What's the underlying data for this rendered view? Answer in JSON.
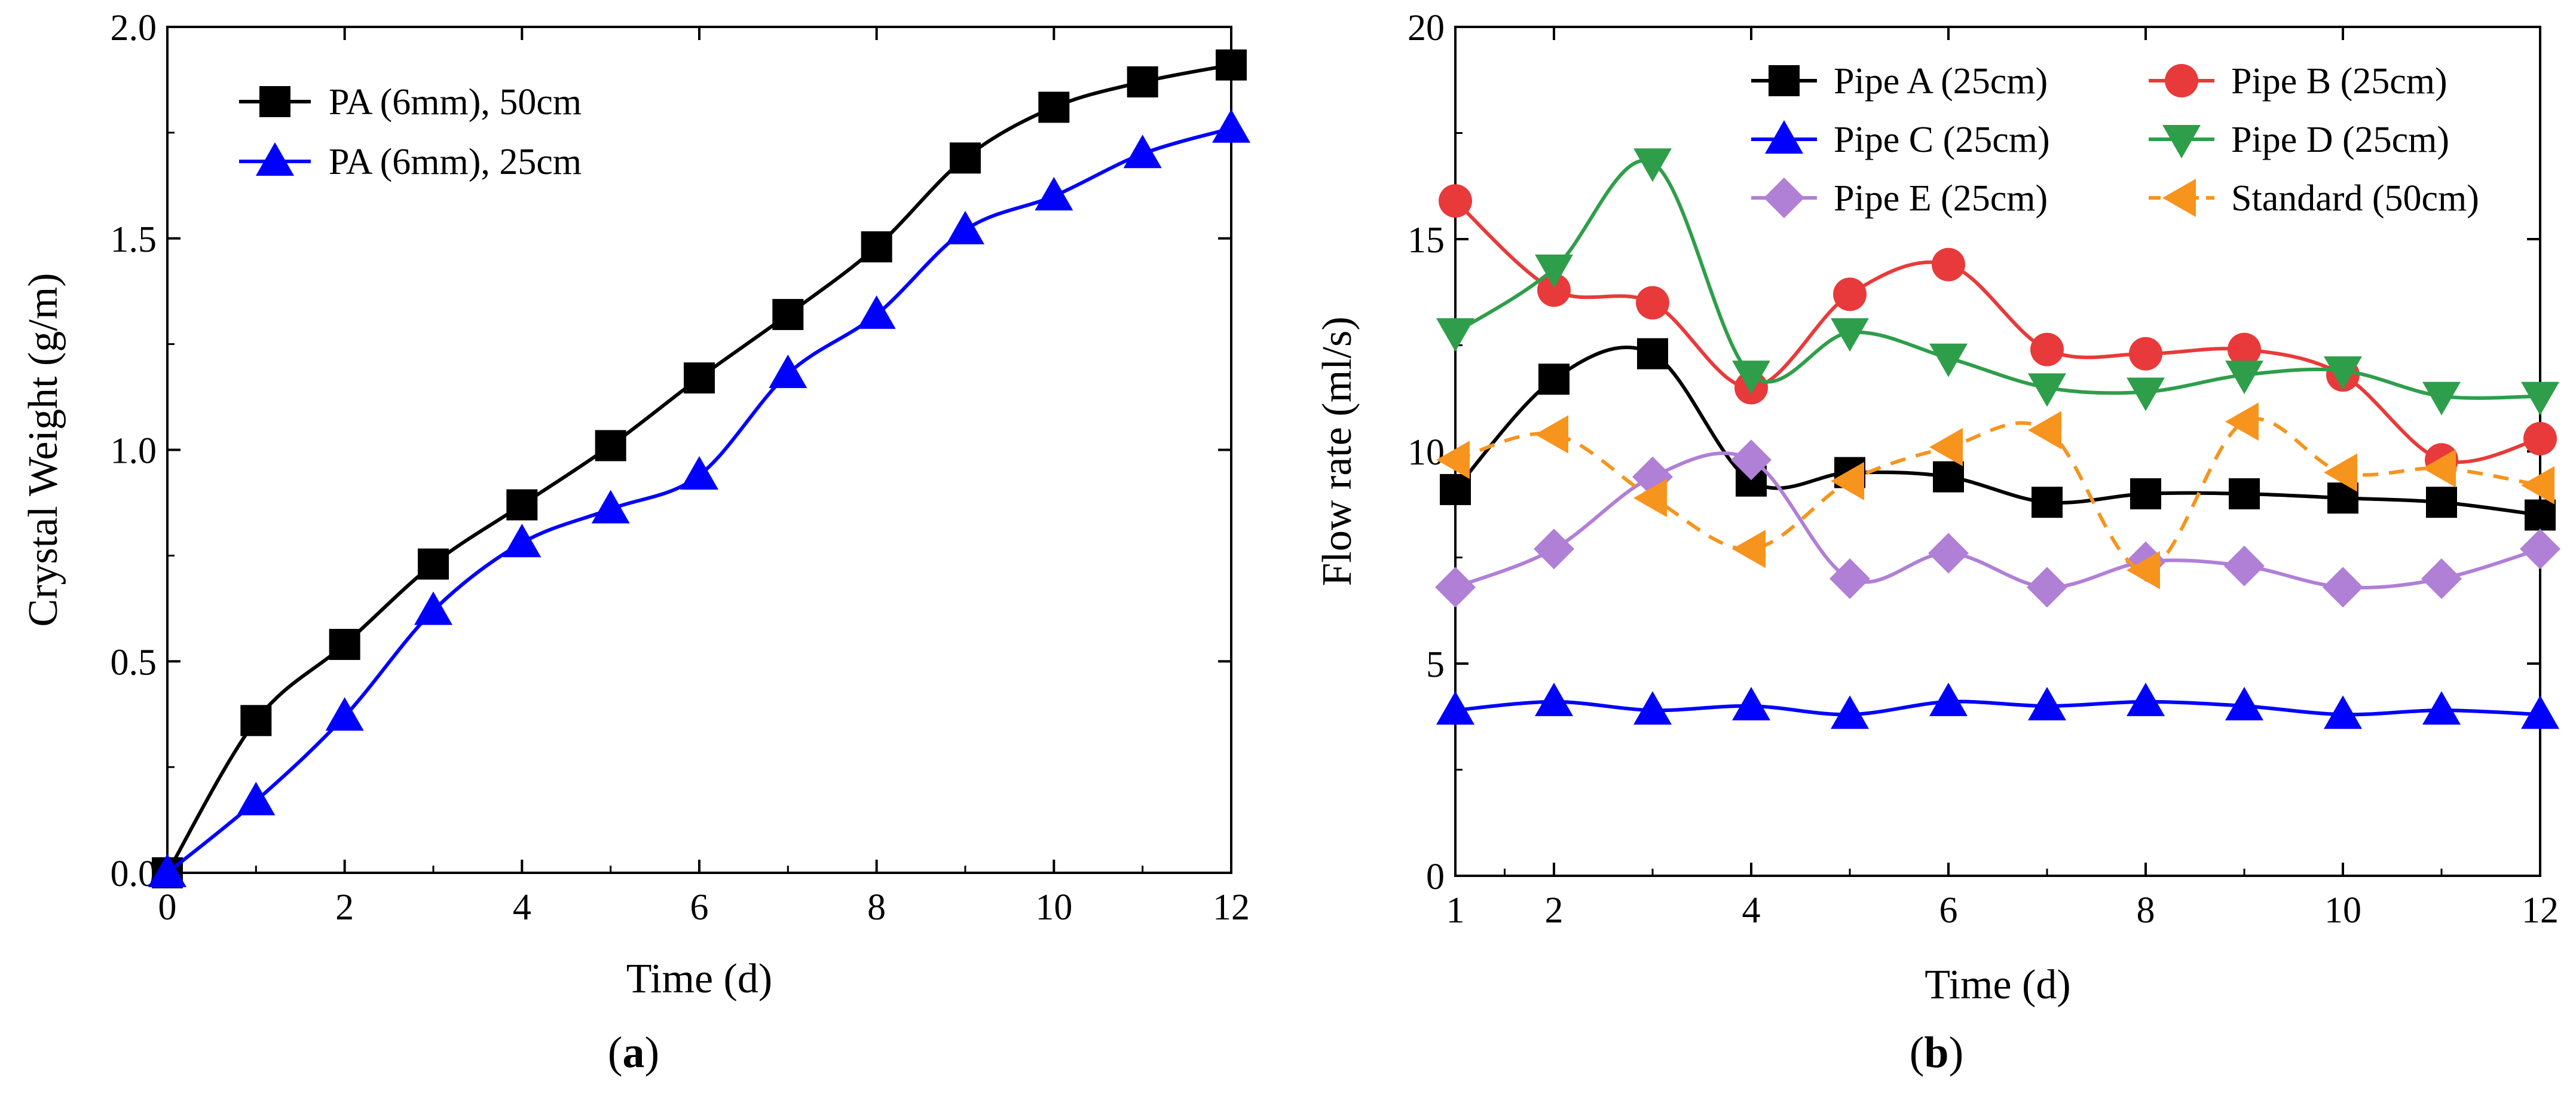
{
  "chart_data": [
    {
      "type": "line",
      "panel_label_prefix": "(",
      "panel_label_letter": "a",
      "panel_label_suffix": ")",
      "xlabel": "Time (d)",
      "ylabel": "Crystal Weight (g/m)",
      "xlim": [
        0,
        12
      ],
      "ylim": [
        0,
        2.0
      ],
      "xticks": [
        0,
        2,
        4,
        6,
        8,
        10,
        12
      ],
      "yticks": [
        0.0,
        0.5,
        1.0,
        1.5,
        2.0
      ],
      "xtick_labels": [
        "0",
        "2",
        "4",
        "6",
        "8",
        "10",
        "12"
      ],
      "ytick_labels": [
        "0.0",
        "0.5",
        "1.0",
        "1.5",
        "2.0"
      ],
      "grid": false,
      "legend_position": "top-left",
      "series": [
        {
          "name": "PA (6mm), 50cm",
          "color": "#000000",
          "marker": "square",
          "x": [
            0,
            1,
            2,
            3,
            4,
            5,
            6,
            7,
            8,
            9,
            10,
            11,
            12
          ],
          "values": [
            0.0,
            0.36,
            0.54,
            0.73,
            0.87,
            1.01,
            1.17,
            1.32,
            1.48,
            1.69,
            1.81,
            1.87,
            1.91
          ]
        },
        {
          "name": "PA (6mm), 25cm",
          "color": "#0000ff",
          "marker": "triangle-up",
          "x": [
            0,
            1,
            2,
            3,
            4,
            5,
            6,
            7,
            8,
            9,
            10,
            11,
            12
          ],
          "values": [
            0.0,
            0.17,
            0.37,
            0.62,
            0.78,
            0.86,
            0.94,
            1.18,
            1.32,
            1.52,
            1.6,
            1.7,
            1.76
          ]
        }
      ]
    },
    {
      "type": "line",
      "panel_label_prefix": "(",
      "panel_label_letter": "b",
      "panel_label_suffix": ")",
      "xlabel": "Time (d)",
      "ylabel": "Flow rate (ml/s)",
      "xlim": [
        1,
        12
      ],
      "ylim": [
        0,
        20
      ],
      "xticks": [
        1,
        2,
        4,
        6,
        8,
        10,
        12
      ],
      "yticks": [
        0,
        5,
        10,
        15,
        20
      ],
      "xtick_labels": [
        "1",
        "2",
        "4",
        "6",
        "8",
        "10",
        "12"
      ],
      "ytick_labels": [
        "0",
        "5",
        "10",
        "15",
        "20"
      ],
      "grid": false,
      "legend_position": "top",
      "series": [
        {
          "name": "Pipe A (25cm)",
          "color": "#000000",
          "marker": "square",
          "x": [
            1,
            2,
            3,
            4,
            5,
            6,
            7,
            8,
            9,
            10,
            11,
            12
          ],
          "values": [
            9.1,
            11.7,
            12.3,
            9.3,
            9.5,
            9.4,
            8.8,
            9.0,
            9.0,
            8.9,
            8.8,
            8.5
          ]
        },
        {
          "name": "Pipe B (25cm)",
          "color": "#e83a3a",
          "marker": "circle",
          "x": [
            1,
            2,
            3,
            4,
            5,
            6,
            7,
            8,
            9,
            10,
            11,
            12
          ],
          "values": [
            15.9,
            13.8,
            13.5,
            11.5,
            13.7,
            14.4,
            12.4,
            12.3,
            12.4,
            11.8,
            9.8,
            10.3
          ]
        },
        {
          "name": "Pipe C (25cm)",
          "color": "#0000ff",
          "marker": "triangle-up",
          "x": [
            1,
            2,
            3,
            4,
            5,
            6,
            7,
            8,
            9,
            10,
            11,
            12
          ],
          "values": [
            3.9,
            4.1,
            3.9,
            4.0,
            3.8,
            4.1,
            4.0,
            4.1,
            4.0,
            3.8,
            3.9,
            3.8
          ]
        },
        {
          "name": "Pipe D (25cm)",
          "color": "#2e9e4a",
          "marker": "triangle-down",
          "x": [
            1,
            2,
            3,
            4,
            5,
            6,
            7,
            8,
            9,
            10,
            11,
            12
          ],
          "values": [
            12.8,
            14.3,
            16.8,
            11.8,
            12.8,
            12.2,
            11.5,
            11.4,
            11.8,
            11.9,
            11.3,
            11.3
          ]
        },
        {
          "name": "Pipe E (25cm)",
          "color": "#b07fd6",
          "marker": "diamond",
          "x": [
            1,
            2,
            3,
            4,
            5,
            6,
            7,
            8,
            9,
            10,
            11,
            12
          ],
          "values": [
            6.8,
            7.7,
            9.4,
            9.8,
            7.0,
            7.6,
            6.8,
            7.4,
            7.3,
            6.8,
            7.0,
            7.7
          ]
        },
        {
          "name": "Standard (50cm)",
          "color": "#f7941d",
          "marker": "triangle-left",
          "dashed": true,
          "x": [
            1,
            2,
            3,
            4,
            5,
            6,
            7,
            8,
            9,
            10,
            11,
            12
          ],
          "values": [
            9.8,
            10.4,
            8.9,
            7.7,
            9.3,
            10.1,
            10.5,
            7.2,
            10.7,
            9.5,
            9.6,
            9.2
          ]
        }
      ]
    }
  ]
}
